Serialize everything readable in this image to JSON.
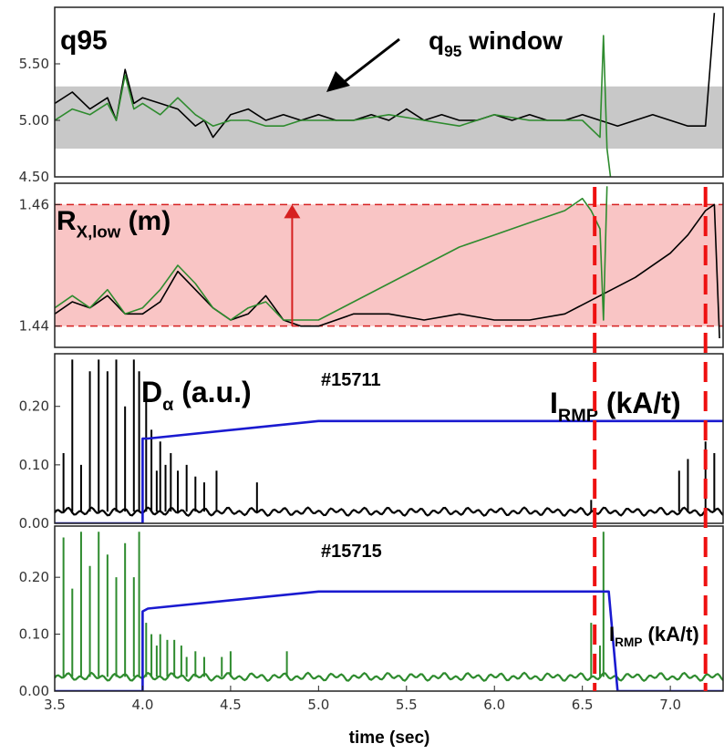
{
  "chart_data": [
    {
      "type": "line",
      "panel_label": "q95",
      "annotation": {
        "text_main": "q",
        "text_sub": "95",
        "text_rest": " window"
      },
      "ylim": [
        4.5,
        6.0
      ],
      "yticks": [
        "5.50",
        "5.00",
        "4.50"
      ],
      "yticks_values": [
        5.5,
        5.0,
        4.5
      ],
      "band": [
        4.75,
        5.3
      ],
      "band_color": "#c8c8c8",
      "series": [
        {
          "color": "#000000",
          "x": [
            3.5,
            3.6,
            3.7,
            3.8,
            3.85,
            3.9,
            3.95,
            4.0,
            4.1,
            4.2,
            4.3,
            4.35,
            4.4,
            4.5,
            4.6,
            4.7,
            4.8,
            4.9,
            5.0,
            5.1,
            5.2,
            5.3,
            5.4,
            5.5,
            5.6,
            5.7,
            5.8,
            5.9,
            6.0,
            6.1,
            6.2,
            6.3,
            6.4,
            6.5,
            6.6,
            6.7,
            6.8,
            6.9,
            7.0,
            7.1,
            7.2,
            7.25
          ],
          "y": [
            5.15,
            5.25,
            5.1,
            5.2,
            5.0,
            5.45,
            5.15,
            5.2,
            5.15,
            5.1,
            4.95,
            5.0,
            4.85,
            5.05,
            5.1,
            5.0,
            5.05,
            5.0,
            5.05,
            5.0,
            5.0,
            5.05,
            5.0,
            5.1,
            5.0,
            5.05,
            5.0,
            5.0,
            5.05,
            5.0,
            5.05,
            5.0,
            5.0,
            5.05,
            5.0,
            4.95,
            5.0,
            5.05,
            5.0,
            4.95,
            4.95,
            5.95
          ]
        },
        {
          "color": "#2e8b2e",
          "x": [
            3.5,
            3.6,
            3.7,
            3.8,
            3.85,
            3.9,
            3.95,
            4.0,
            4.1,
            4.2,
            4.3,
            4.35,
            4.4,
            4.5,
            4.6,
            4.7,
            4.8,
            4.9,
            5.0,
            5.2,
            5.4,
            5.6,
            5.8,
            6.0,
            6.2,
            6.4,
            6.5,
            6.6,
            6.62,
            6.64,
            6.66
          ],
          "y": [
            5.0,
            5.1,
            5.05,
            5.15,
            5.0,
            5.4,
            5.1,
            5.15,
            5.05,
            5.2,
            5.05,
            5.0,
            4.95,
            5.0,
            5.0,
            4.95,
            4.95,
            5.0,
            5.0,
            5.0,
            5.05,
            5.0,
            4.95,
            5.05,
            5.0,
            5.0,
            5.0,
            4.85,
            5.75,
            4.75,
            4.5
          ]
        }
      ]
    },
    {
      "type": "line",
      "panel_label_main": "R",
      "panel_label_sub": "X,low",
      "panel_label_rest": " (m)",
      "ylim": [
        1.4365,
        1.4635
      ],
      "yticks": [
        "1.46",
        "1.44"
      ],
      "yticks_values": [
        1.46,
        1.44
      ],
      "band": [
        1.44,
        1.46
      ],
      "band_color": "#f9c5c5",
      "series": [
        {
          "color": "#000000",
          "x": [
            3.5,
            3.6,
            3.7,
            3.8,
            3.9,
            4.0,
            4.1,
            4.2,
            4.3,
            4.4,
            4.5,
            4.6,
            4.7,
            4.8,
            4.9,
            5.0,
            5.2,
            5.4,
            5.6,
            5.8,
            6.0,
            6.2,
            6.4,
            6.6,
            6.8,
            7.0,
            7.1,
            7.2,
            7.25,
            7.28
          ],
          "y": [
            1.442,
            1.444,
            1.443,
            1.445,
            1.442,
            1.442,
            1.444,
            1.449,
            1.446,
            1.443,
            1.441,
            1.442,
            1.445,
            1.441,
            1.44,
            1.44,
            1.442,
            1.442,
            1.441,
            1.442,
            1.441,
            1.441,
            1.442,
            1.445,
            1.448,
            1.452,
            1.455,
            1.459,
            1.46,
            1.438
          ]
        },
        {
          "color": "#2e8b2e",
          "x": [
            3.5,
            3.6,
            3.7,
            3.8,
            3.9,
            4.0,
            4.1,
            4.2,
            4.3,
            4.4,
            4.5,
            4.6,
            4.7,
            4.8,
            5.0,
            5.2,
            5.4,
            5.6,
            5.8,
            6.0,
            6.2,
            6.4,
            6.5,
            6.55,
            6.6,
            6.62,
            6.64
          ],
          "y": [
            1.443,
            1.445,
            1.443,
            1.446,
            1.442,
            1.443,
            1.446,
            1.45,
            1.447,
            1.443,
            1.441,
            1.443,
            1.444,
            1.441,
            1.441,
            1.444,
            1.447,
            1.45,
            1.453,
            1.455,
            1.457,
            1.459,
            1.461,
            1.459,
            1.456,
            1.441,
            1.463
          ]
        }
      ],
      "arrow": {
        "x": 4.85,
        "y_from": 1.44,
        "y_to": 1.46,
        "color": "#d62020"
      }
    },
    {
      "type": "line",
      "panel_label_main": "D",
      "panel_label_sub": "α",
      "panel_label_rest": " (a.u.)",
      "shot_label": "#15711",
      "shot_color": "#000000",
      "irmp_label_main": "I",
      "irmp_label_sub": "RMP",
      "irmp_label_rest": " (kA/t)",
      "irmp_color": "#1a1ad0",
      "ylim": [
        0,
        0.29
      ],
      "yticks": [
        "0.20",
        "0.10",
        "0.00"
      ],
      "yticks_values": [
        0.2,
        0.1,
        0.0
      ],
      "series": [
        {
          "name": "IRMP",
          "color": "#1a1ad0",
          "x": [
            3.5,
            4.0,
            4.0,
            4.03,
            5.0,
            7.3
          ],
          "y": [
            0.0,
            0.0,
            0.145,
            0.145,
            0.175,
            0.175
          ]
        }
      ],
      "dalpha": {
        "color": "#000000",
        "baseline": 0.02,
        "spikes_x": [
          3.55,
          3.6,
          3.65,
          3.7,
          3.75,
          3.8,
          3.85,
          3.9,
          3.95,
          3.98,
          4.02,
          4.05,
          4.08,
          4.1,
          4.13,
          4.16,
          4.2,
          4.25,
          4.3,
          4.35,
          4.42,
          4.65,
          6.55,
          7.05,
          7.1,
          7.2,
          7.25
        ],
        "spikes_y": [
          0.12,
          0.28,
          0.1,
          0.26,
          0.28,
          0.26,
          0.28,
          0.2,
          0.28,
          0.26,
          0.22,
          0.16,
          0.09,
          0.14,
          0.1,
          0.12,
          0.09,
          0.1,
          0.08,
          0.07,
          0.09,
          0.07,
          0.04,
          0.09,
          0.11,
          0.14,
          0.12
        ]
      }
    },
    {
      "type": "line",
      "shot_label": "#15715",
      "shot_color": "#2e8b2e",
      "irmp_label_main": "I",
      "irmp_label_sub": "RMP",
      "irmp_label_rest": " (kA/t)",
      "irmp_color": "#1a1ad0",
      "ylim": [
        0,
        0.29
      ],
      "yticks": [
        "0.20",
        "0.10",
        "0.00"
      ],
      "yticks_values": [
        0.2,
        0.1,
        0.0
      ],
      "series": [
        {
          "name": "IRMP",
          "color": "#1a1ad0",
          "x": [
            3.5,
            4.0,
            4.0,
            4.03,
            5.0,
            6.65,
            6.65,
            6.7,
            7.3
          ],
          "y": [
            0.0,
            0.0,
            0.14,
            0.145,
            0.175,
            0.175,
            0.175,
            0.0,
            0.0
          ]
        }
      ],
      "dalpha": {
        "color": "#2e8b2e",
        "baseline": 0.025,
        "spikes_x": [
          3.55,
          3.6,
          3.65,
          3.7,
          3.75,
          3.8,
          3.85,
          3.9,
          3.95,
          3.98,
          4.02,
          4.05,
          4.08,
          4.1,
          4.14,
          4.18,
          4.22,
          4.25,
          4.3,
          4.35,
          4.45,
          4.5,
          4.82,
          6.55,
          6.6,
          6.62
        ],
        "spikes_y": [
          0.27,
          0.18,
          0.28,
          0.22,
          0.28,
          0.24,
          0.2,
          0.26,
          0.2,
          0.28,
          0.12,
          0.1,
          0.08,
          0.1,
          0.09,
          0.09,
          0.08,
          0.06,
          0.07,
          0.06,
          0.06,
          0.07,
          0.07,
          0.12,
          0.08,
          0.28
        ]
      }
    }
  ],
  "x_axis": {
    "xlim": [
      3.5,
      7.3
    ],
    "ticks": [
      "3.5",
      "4.0",
      "4.5",
      "5.0",
      "5.5",
      "6.0",
      "6.5",
      "7.0"
    ],
    "tick_values": [
      3.5,
      4.0,
      4.5,
      5.0,
      5.5,
      6.0,
      6.5,
      7.0
    ],
    "xlabel": "time (sec)"
  },
  "vlines": {
    "x": [
      6.57,
      7.2
    ],
    "color": "#ee1111"
  }
}
